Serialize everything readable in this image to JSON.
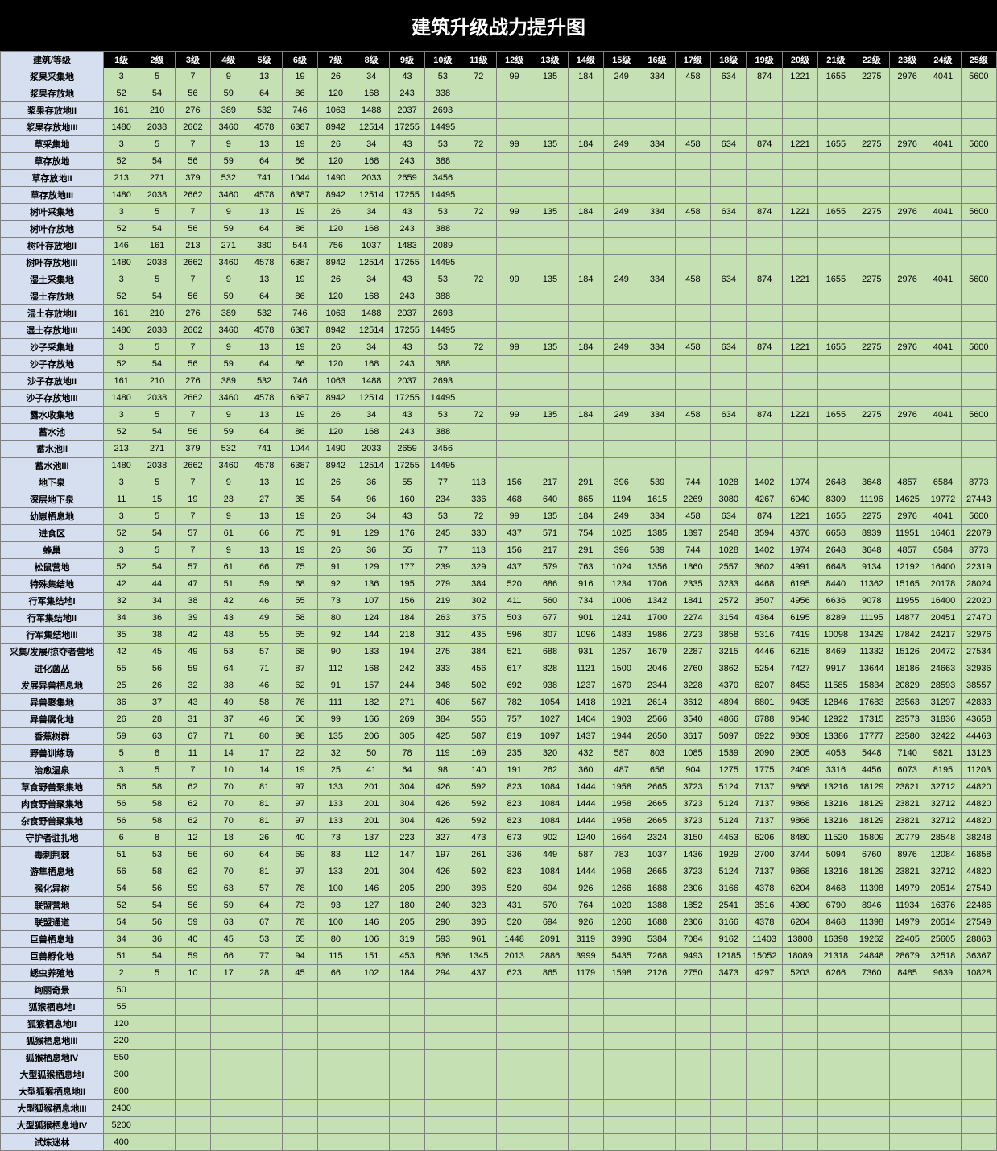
{
  "title": "建筑升级战力提升图",
  "colors": {
    "header_bg": "#000000",
    "header_fg": "#ffffff",
    "rowhead_bg": "#d5dff0",
    "cell_bg": "#c5e0b3",
    "border": "#808080"
  },
  "corner_label": "建筑/等级",
  "level_labels": [
    "1级",
    "2级",
    "3级",
    "4级",
    "5级",
    "6级",
    "7级",
    "8级",
    "9级",
    "10级",
    "11级",
    "12级",
    "13级",
    "14级",
    "15级",
    "16级",
    "17级",
    "18级",
    "19级",
    "20级",
    "21级",
    "22级",
    "23级",
    "24级",
    "25级"
  ],
  "rows": [
    {
      "name": "浆果采集地",
      "v": [
        3,
        5,
        7,
        9,
        13,
        19,
        26,
        34,
        43,
        53,
        72,
        99,
        135,
        184,
        249,
        334,
        458,
        634,
        874,
        1221,
        1655,
        2275,
        2976,
        4041,
        5600
      ]
    },
    {
      "name": "浆果存放地",
      "v": [
        52,
        54,
        56,
        59,
        64,
        86,
        120,
        168,
        243,
        338
      ]
    },
    {
      "name": "浆果存放地II",
      "v": [
        161,
        210,
        276,
        389,
        532,
        746,
        1063,
        1488,
        2037,
        2693
      ]
    },
    {
      "name": "浆果存放地III",
      "v": [
        1480,
        2038,
        2662,
        3460,
        4578,
        6387,
        8942,
        12514,
        17255,
        14495
      ]
    },
    {
      "name": "草采集地",
      "v": [
        3,
        5,
        7,
        9,
        13,
        19,
        26,
        34,
        43,
        53,
        72,
        99,
        135,
        184,
        249,
        334,
        458,
        634,
        874,
        1221,
        1655,
        2275,
        2976,
        4041,
        5600
      ]
    },
    {
      "name": "草存放地",
      "v": [
        52,
        54,
        56,
        59,
        64,
        86,
        120,
        168,
        243,
        388
      ]
    },
    {
      "name": "草存放地II",
      "v": [
        213,
        271,
        379,
        532,
        741,
        1044,
        1490,
        2033,
        2659,
        3456
      ]
    },
    {
      "name": "草存放地III",
      "v": [
        1480,
        2038,
        2662,
        3460,
        4578,
        6387,
        8942,
        12514,
        17255,
        14495
      ]
    },
    {
      "name": "树叶采集地",
      "v": [
        3,
        5,
        7,
        9,
        13,
        19,
        26,
        34,
        43,
        53,
        72,
        99,
        135,
        184,
        249,
        334,
        458,
        634,
        874,
        1221,
        1655,
        2275,
        2976,
        4041,
        5600
      ]
    },
    {
      "name": "树叶存放地",
      "v": [
        52,
        54,
        56,
        59,
        64,
        86,
        120,
        168,
        243,
        388
      ]
    },
    {
      "name": "树叶存放地II",
      "v": [
        146,
        161,
        213,
        271,
        380,
        544,
        756,
        1037,
        1483,
        2089
      ]
    },
    {
      "name": "树叶存放地III",
      "v": [
        1480,
        2038,
        2662,
        3460,
        4578,
        6387,
        8942,
        12514,
        17255,
        14495
      ]
    },
    {
      "name": "湿土采集地",
      "v": [
        3,
        5,
        7,
        9,
        13,
        19,
        26,
        34,
        43,
        53,
        72,
        99,
        135,
        184,
        249,
        334,
        458,
        634,
        874,
        1221,
        1655,
        2275,
        2976,
        4041,
        5600
      ]
    },
    {
      "name": "湿土存放地",
      "v": [
        52,
        54,
        56,
        59,
        64,
        86,
        120,
        168,
        243,
        388
      ]
    },
    {
      "name": "湿土存放地II",
      "v": [
        161,
        210,
        276,
        389,
        532,
        746,
        1063,
        1488,
        2037,
        2693
      ]
    },
    {
      "name": "湿土存放地III",
      "v": [
        1480,
        2038,
        2662,
        3460,
        4578,
        6387,
        8942,
        12514,
        17255,
        14495
      ]
    },
    {
      "name": "沙子采集地",
      "v": [
        3,
        5,
        7,
        9,
        13,
        19,
        26,
        34,
        43,
        53,
        72,
        99,
        135,
        184,
        249,
        334,
        458,
        634,
        874,
        1221,
        1655,
        2275,
        2976,
        4041,
        5600
      ]
    },
    {
      "name": "沙子存放地",
      "v": [
        52,
        54,
        56,
        59,
        64,
        86,
        120,
        168,
        243,
        388
      ]
    },
    {
      "name": "沙子存放地II",
      "v": [
        161,
        210,
        276,
        389,
        532,
        746,
        1063,
        1488,
        2037,
        2693
      ]
    },
    {
      "name": "沙子存放地III",
      "v": [
        1480,
        2038,
        2662,
        3460,
        4578,
        6387,
        8942,
        12514,
        17255,
        14495
      ]
    },
    {
      "name": "露水收集地",
      "v": [
        3,
        5,
        7,
        9,
        13,
        19,
        26,
        34,
        43,
        53,
        72,
        99,
        135,
        184,
        249,
        334,
        458,
        634,
        874,
        1221,
        1655,
        2275,
        2976,
        4041,
        5600
      ]
    },
    {
      "name": "蓄水池",
      "v": [
        52,
        54,
        56,
        59,
        64,
        86,
        120,
        168,
        243,
        388
      ]
    },
    {
      "name": "蓄水池II",
      "v": [
        213,
        271,
        379,
        532,
        741,
        1044,
        1490,
        2033,
        2659,
        3456
      ]
    },
    {
      "name": "蓄水池III",
      "v": [
        1480,
        2038,
        2662,
        3460,
        4578,
        6387,
        8942,
        12514,
        17255,
        14495
      ]
    },
    {
      "name": "地下泉",
      "v": [
        3,
        5,
        7,
        9,
        13,
        19,
        26,
        36,
        55,
        77,
        113,
        156,
        217,
        291,
        396,
        539,
        744,
        1028,
        1402,
        1974,
        2648,
        3648,
        4857,
        6584,
        8773
      ]
    },
    {
      "name": "深层地下泉",
      "v": [
        11,
        15,
        19,
        23,
        27,
        35,
        54,
        96,
        160,
        234,
        336,
        468,
        640,
        865,
        1194,
        1615,
        2269,
        3080,
        4267,
        6040,
        8309,
        11196,
        14625,
        19772,
        27443
      ]
    },
    {
      "name": "幼崽栖息地",
      "v": [
        3,
        5,
        7,
        9,
        13,
        19,
        26,
        34,
        43,
        53,
        72,
        99,
        135,
        184,
        249,
        334,
        458,
        634,
        874,
        1221,
        1655,
        2275,
        2976,
        4041,
        5600
      ]
    },
    {
      "name": "进食区",
      "v": [
        52,
        54,
        57,
        61,
        66,
        75,
        91,
        129,
        176,
        245,
        330,
        437,
        571,
        754,
        1025,
        1385,
        1897,
        2548,
        3594,
        4876,
        6658,
        8939,
        11951,
        16461,
        22079
      ]
    },
    {
      "name": "蜂巢",
      "v": [
        3,
        5,
        7,
        9,
        13,
        19,
        26,
        36,
        55,
        77,
        113,
        156,
        217,
        291,
        396,
        539,
        744,
        1028,
        1402,
        1974,
        2648,
        3648,
        4857,
        6584,
        8773
      ]
    },
    {
      "name": "松鼠营地",
      "v": [
        52,
        54,
        57,
        61,
        66,
        75,
        91,
        129,
        177,
        239,
        329,
        437,
        579,
        763,
        1024,
        1356,
        1860,
        2557,
        3602,
        4991,
        6648,
        9134,
        12192,
        16400,
        22319
      ]
    },
    {
      "name": "特殊集结地",
      "v": [
        42,
        44,
        47,
        51,
        59,
        68,
        92,
        136,
        195,
        279,
        384,
        520,
        686,
        916,
        1234,
        1706,
        2335,
        3233,
        4468,
        6195,
        8440,
        11362,
        15165,
        20178,
        28024
      ]
    },
    {
      "name": "行军集结地I",
      "v": [
        32,
        34,
        38,
        42,
        46,
        55,
        73,
        107,
        156,
        219,
        302,
        411,
        560,
        734,
        1006,
        1342,
        1841,
        2572,
        3507,
        4956,
        6636,
        9078,
        11955,
        16400,
        22020
      ]
    },
    {
      "name": "行军集结地II",
      "v": [
        34,
        36,
        39,
        43,
        49,
        58,
        80,
        124,
        184,
        263,
        375,
        503,
        677,
        901,
        1241,
        1700,
        2274,
        3154,
        4364,
        6195,
        8289,
        11195,
        14877,
        20451,
        27470
      ]
    },
    {
      "name": "行军集结地III",
      "v": [
        35,
        38,
        42,
        48,
        55,
        65,
        92,
        144,
        218,
        312,
        435,
        596,
        807,
        1096,
        1483,
        1986,
        2723,
        3858,
        5316,
        7419,
        10098,
        13429,
        17842,
        24217,
        32976
      ]
    },
    {
      "name": "采集/发展/掠夺者营地",
      "v": [
        42,
        45,
        49,
        53,
        57,
        68,
        90,
        133,
        194,
        275,
        384,
        521,
        688,
        931,
        1257,
        1679,
        2287,
        3215,
        4446,
        6215,
        8469,
        11332,
        15126,
        20472,
        27534
      ]
    },
    {
      "name": "进化菌丛",
      "v": [
        55,
        56,
        59,
        64,
        71,
        87,
        112,
        168,
        242,
        333,
        456,
        617,
        828,
        1121,
        1500,
        2046,
        2760,
        3862,
        5254,
        7427,
        9917,
        13644,
        18186,
        24663,
        32936
      ]
    },
    {
      "name": "发展异兽栖息地",
      "v": [
        25,
        26,
        32,
        38,
        46,
        62,
        91,
        157,
        244,
        348,
        502,
        692,
        938,
        1237,
        1679,
        2344,
        3228,
        4370,
        6207,
        8453,
        11585,
        15834,
        20829,
        28593,
        38557
      ]
    },
    {
      "name": "异兽聚集地",
      "v": [
        36,
        37,
        43,
        49,
        58,
        76,
        111,
        182,
        271,
        406,
        567,
        782,
        1054,
        1418,
        1921,
        2614,
        3612,
        4894,
        6801,
        9435,
        12846,
        17683,
        23563,
        31297,
        42833
      ]
    },
    {
      "name": "异兽腐化地",
      "v": [
        26,
        28,
        31,
        37,
        46,
        66,
        99,
        166,
        269,
        384,
        556,
        757,
        1027,
        1404,
        1903,
        2566,
        3540,
        4866,
        6788,
        9646,
        12922,
        17315,
        23573,
        31836,
        43658
      ]
    },
    {
      "name": "香蕉树群",
      "v": [
        59,
        63,
        67,
        71,
        80,
        98,
        135,
        206,
        305,
        425,
        587,
        819,
        1097,
        1437,
        1944,
        2650,
        3617,
        5097,
        6922,
        9809,
        13386,
        17777,
        23580,
        32422,
        44463
      ]
    },
    {
      "name": "野兽训练场",
      "v": [
        5,
        8,
        11,
        14,
        17,
        22,
        32,
        50,
        78,
        119,
        169,
        235,
        320,
        432,
        587,
        803,
        1085,
        1539,
        2090,
        2905,
        4053,
        5448,
        7140,
        9821,
        13123
      ]
    },
    {
      "name": "治愈温泉",
      "v": [
        3,
        5,
        7,
        10,
        14,
        19,
        25,
        41,
        64,
        98,
        140,
        191,
        262,
        360,
        487,
        656,
        904,
        1275,
        1775,
        2409,
        3316,
        4456,
        6073,
        8195,
        11203
      ]
    },
    {
      "name": "草食野兽聚集地",
      "v": [
        56,
        58,
        62,
        70,
        81,
        97,
        133,
        201,
        304,
        426,
        592,
        823,
        1084,
        1444,
        1958,
        2665,
        3723,
        5124,
        7137,
        9868,
        13216,
        18129,
        23821,
        32712,
        44820
      ]
    },
    {
      "name": "肉食野兽聚集地",
      "v": [
        56,
        58,
        62,
        70,
        81,
        97,
        133,
        201,
        304,
        426,
        592,
        823,
        1084,
        1444,
        1958,
        2665,
        3723,
        5124,
        7137,
        9868,
        13216,
        18129,
        23821,
        32712,
        44820
      ]
    },
    {
      "name": "杂食野兽聚集地",
      "v": [
        56,
        58,
        62,
        70,
        81,
        97,
        133,
        201,
        304,
        426,
        592,
        823,
        1084,
        1444,
        1958,
        2665,
        3723,
        5124,
        7137,
        9868,
        13216,
        18129,
        23821,
        32712,
        44820
      ]
    },
    {
      "name": "守护者驻扎地",
      "v": [
        6,
        8,
        12,
        18,
        26,
        40,
        73,
        137,
        223,
        327,
        473,
        673,
        902,
        1240,
        1664,
        2324,
        3150,
        4453,
        6206,
        8480,
        11520,
        15809,
        20779,
        28548,
        38248
      ]
    },
    {
      "name": "毒刺荆棘",
      "v": [
        51,
        53,
        56,
        60,
        64,
        69,
        83,
        112,
        147,
        197,
        261,
        336,
        449,
        587,
        783,
        1037,
        1436,
        1929,
        2700,
        3744,
        5094,
        6760,
        8976,
        12084,
        16858
      ]
    },
    {
      "name": "游隼栖息地",
      "v": [
        56,
        58,
        62,
        70,
        81,
        97,
        133,
        201,
        304,
        426,
        592,
        823,
        1084,
        1444,
        1958,
        2665,
        3723,
        5124,
        7137,
        9868,
        13216,
        18129,
        23821,
        32712,
        44820
      ]
    },
    {
      "name": "强化异树",
      "v": [
        54,
        56,
        59,
        63,
        57,
        78,
        100,
        146,
        205,
        290,
        396,
        520,
        694,
        926,
        1266,
        1688,
        2306,
        3166,
        4378,
        6204,
        8468,
        11398,
        14979,
        20514,
        27549
      ]
    },
    {
      "name": "联盟营地",
      "v": [
        52,
        54,
        56,
        59,
        64,
        73,
        93,
        127,
        180,
        240,
        323,
        431,
        570,
        764,
        1020,
        1388,
        1852,
        2541,
        3516,
        4980,
        6790,
        8946,
        11934,
        16376,
        22486
      ]
    },
    {
      "name": "联盟通道",
      "v": [
        54,
        56,
        59,
        63,
        67,
        78,
        100,
        146,
        205,
        290,
        396,
        520,
        694,
        926,
        1266,
        1688,
        2306,
        3166,
        4378,
        6204,
        8468,
        11398,
        14979,
        20514,
        27549
      ]
    },
    {
      "name": "巨兽栖息地",
      "v": [
        34,
        36,
        40,
        45,
        53,
        65,
        80,
        106,
        319,
        593,
        961,
        1448,
        2091,
        3119,
        3996,
        5384,
        7084,
        9162,
        11403,
        13808,
        16398,
        19262,
        22405,
        25605,
        28863
      ]
    },
    {
      "name": "巨兽孵化地",
      "v": [
        51,
        54,
        59,
        66,
        77,
        94,
        115,
        151,
        453,
        836,
        1345,
        2013,
        2886,
        3999,
        5435,
        7268,
        9493,
        12185,
        15052,
        18089,
        21318,
        24848,
        28679,
        32518,
        36367
      ]
    },
    {
      "name": "蟋虫养殖地",
      "v": [
        2,
        5,
        10,
        17,
        28,
        45,
        66,
        102,
        184,
        294,
        437,
        623,
        865,
        1179,
        1598,
        2126,
        2750,
        3473,
        4297,
        5203,
        6266,
        7360,
        8485,
        9639,
        10828
      ]
    },
    {
      "name": "绚丽奇景",
      "v": [
        50
      ]
    },
    {
      "name": "狐猴栖息地I",
      "v": [
        55
      ]
    },
    {
      "name": "狐猴栖息地II",
      "v": [
        120
      ]
    },
    {
      "name": "狐猴栖息地III",
      "v": [
        220
      ]
    },
    {
      "name": "狐猴栖息地IV",
      "v": [
        550
      ]
    },
    {
      "name": "大型狐猴栖息地I",
      "v": [
        300
      ]
    },
    {
      "name": "大型狐猴栖息地II",
      "v": [
        800
      ]
    },
    {
      "name": "大型狐猴栖息地III",
      "v": [
        2400
      ]
    },
    {
      "name": "大型狐猴栖息地IV",
      "v": [
        5200
      ]
    },
    {
      "name": "试炼迷林",
      "v": [
        400
      ]
    }
  ]
}
